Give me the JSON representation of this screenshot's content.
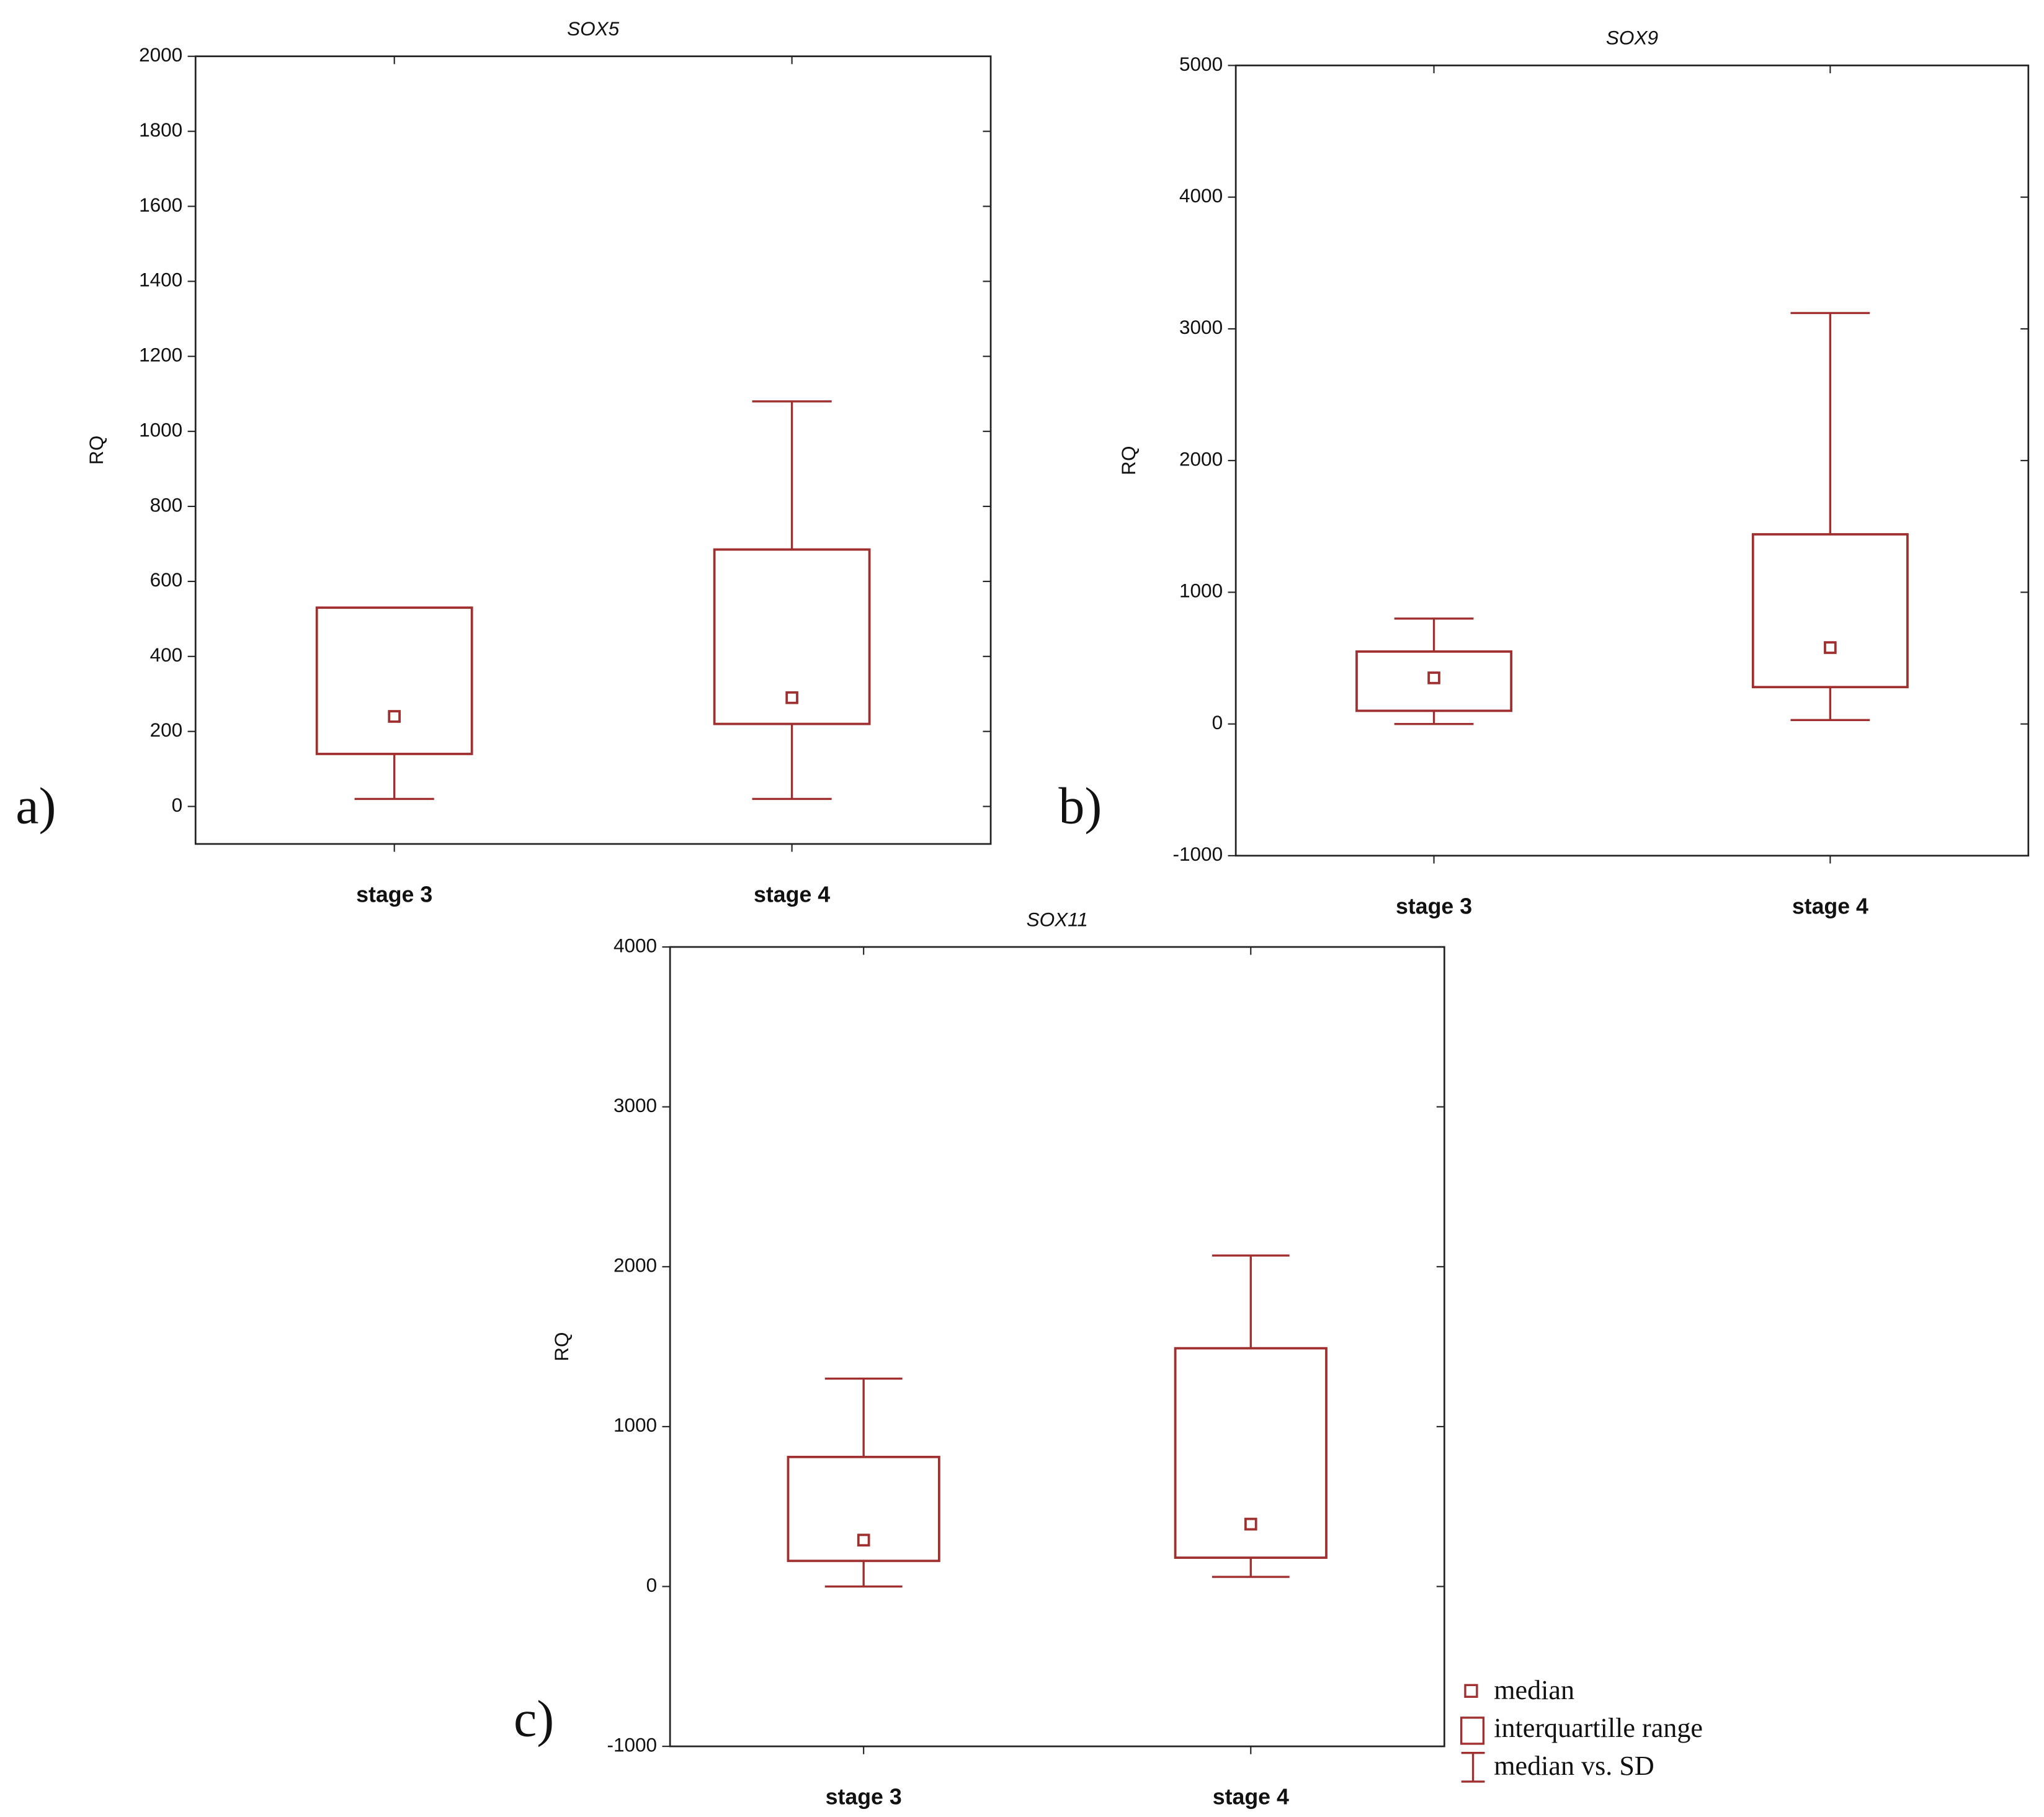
{
  "chart_data": [
    {
      "type": "box",
      "panel_label": "a)",
      "title": "SOX5",
      "ylabel": "RQ",
      "color": "#a0302f",
      "categories": [
        "stage 3",
        "stage 4"
      ],
      "median": [
        240,
        290
      ],
      "q1": [
        140,
        220
      ],
      "q3": [
        530,
        685
      ],
      "whisker_low": [
        20,
        20
      ],
      "whisker_high": [
        null,
        1080
      ],
      "ylim": [
        -100,
        2000
      ],
      "yticks": [
        0,
        200,
        400,
        600,
        800,
        1000,
        1200,
        1400,
        1600,
        1800,
        2000
      ]
    },
    {
      "type": "box",
      "panel_label": "b)",
      "title": "SOX9",
      "ylabel": "RQ",
      "color": "#a0302f",
      "categories": [
        "stage 3",
        "stage 4"
      ],
      "median": [
        350,
        580
      ],
      "q1": [
        100,
        280
      ],
      "q3": [
        550,
        1440
      ],
      "whisker_low": [
        0,
        30
      ],
      "whisker_high": [
        800,
        3120
      ],
      "ylim": [
        -1000,
        5000
      ],
      "yticks": [
        -1000,
        0,
        1000,
        2000,
        3000,
        4000,
        5000
      ]
    },
    {
      "type": "box",
      "panel_label": "c)",
      "title": "SOX11",
      "ylabel": "RQ",
      "color": "#a0302f",
      "categories": [
        "stage 3",
        "stage 4"
      ],
      "median": [
        290,
        390
      ],
      "q1": [
        160,
        180
      ],
      "q3": [
        810,
        1490
      ],
      "whisker_low": [
        0,
        60
      ],
      "whisker_high": [
        1300,
        2070
      ],
      "ylim": [
        -1000,
        4000
      ],
      "yticks": [
        -1000,
        0,
        1000,
        2000,
        3000,
        4000
      ],
      "legend": [
        "median",
        "interquartille range",
        "median vs. SD"
      ]
    }
  ]
}
